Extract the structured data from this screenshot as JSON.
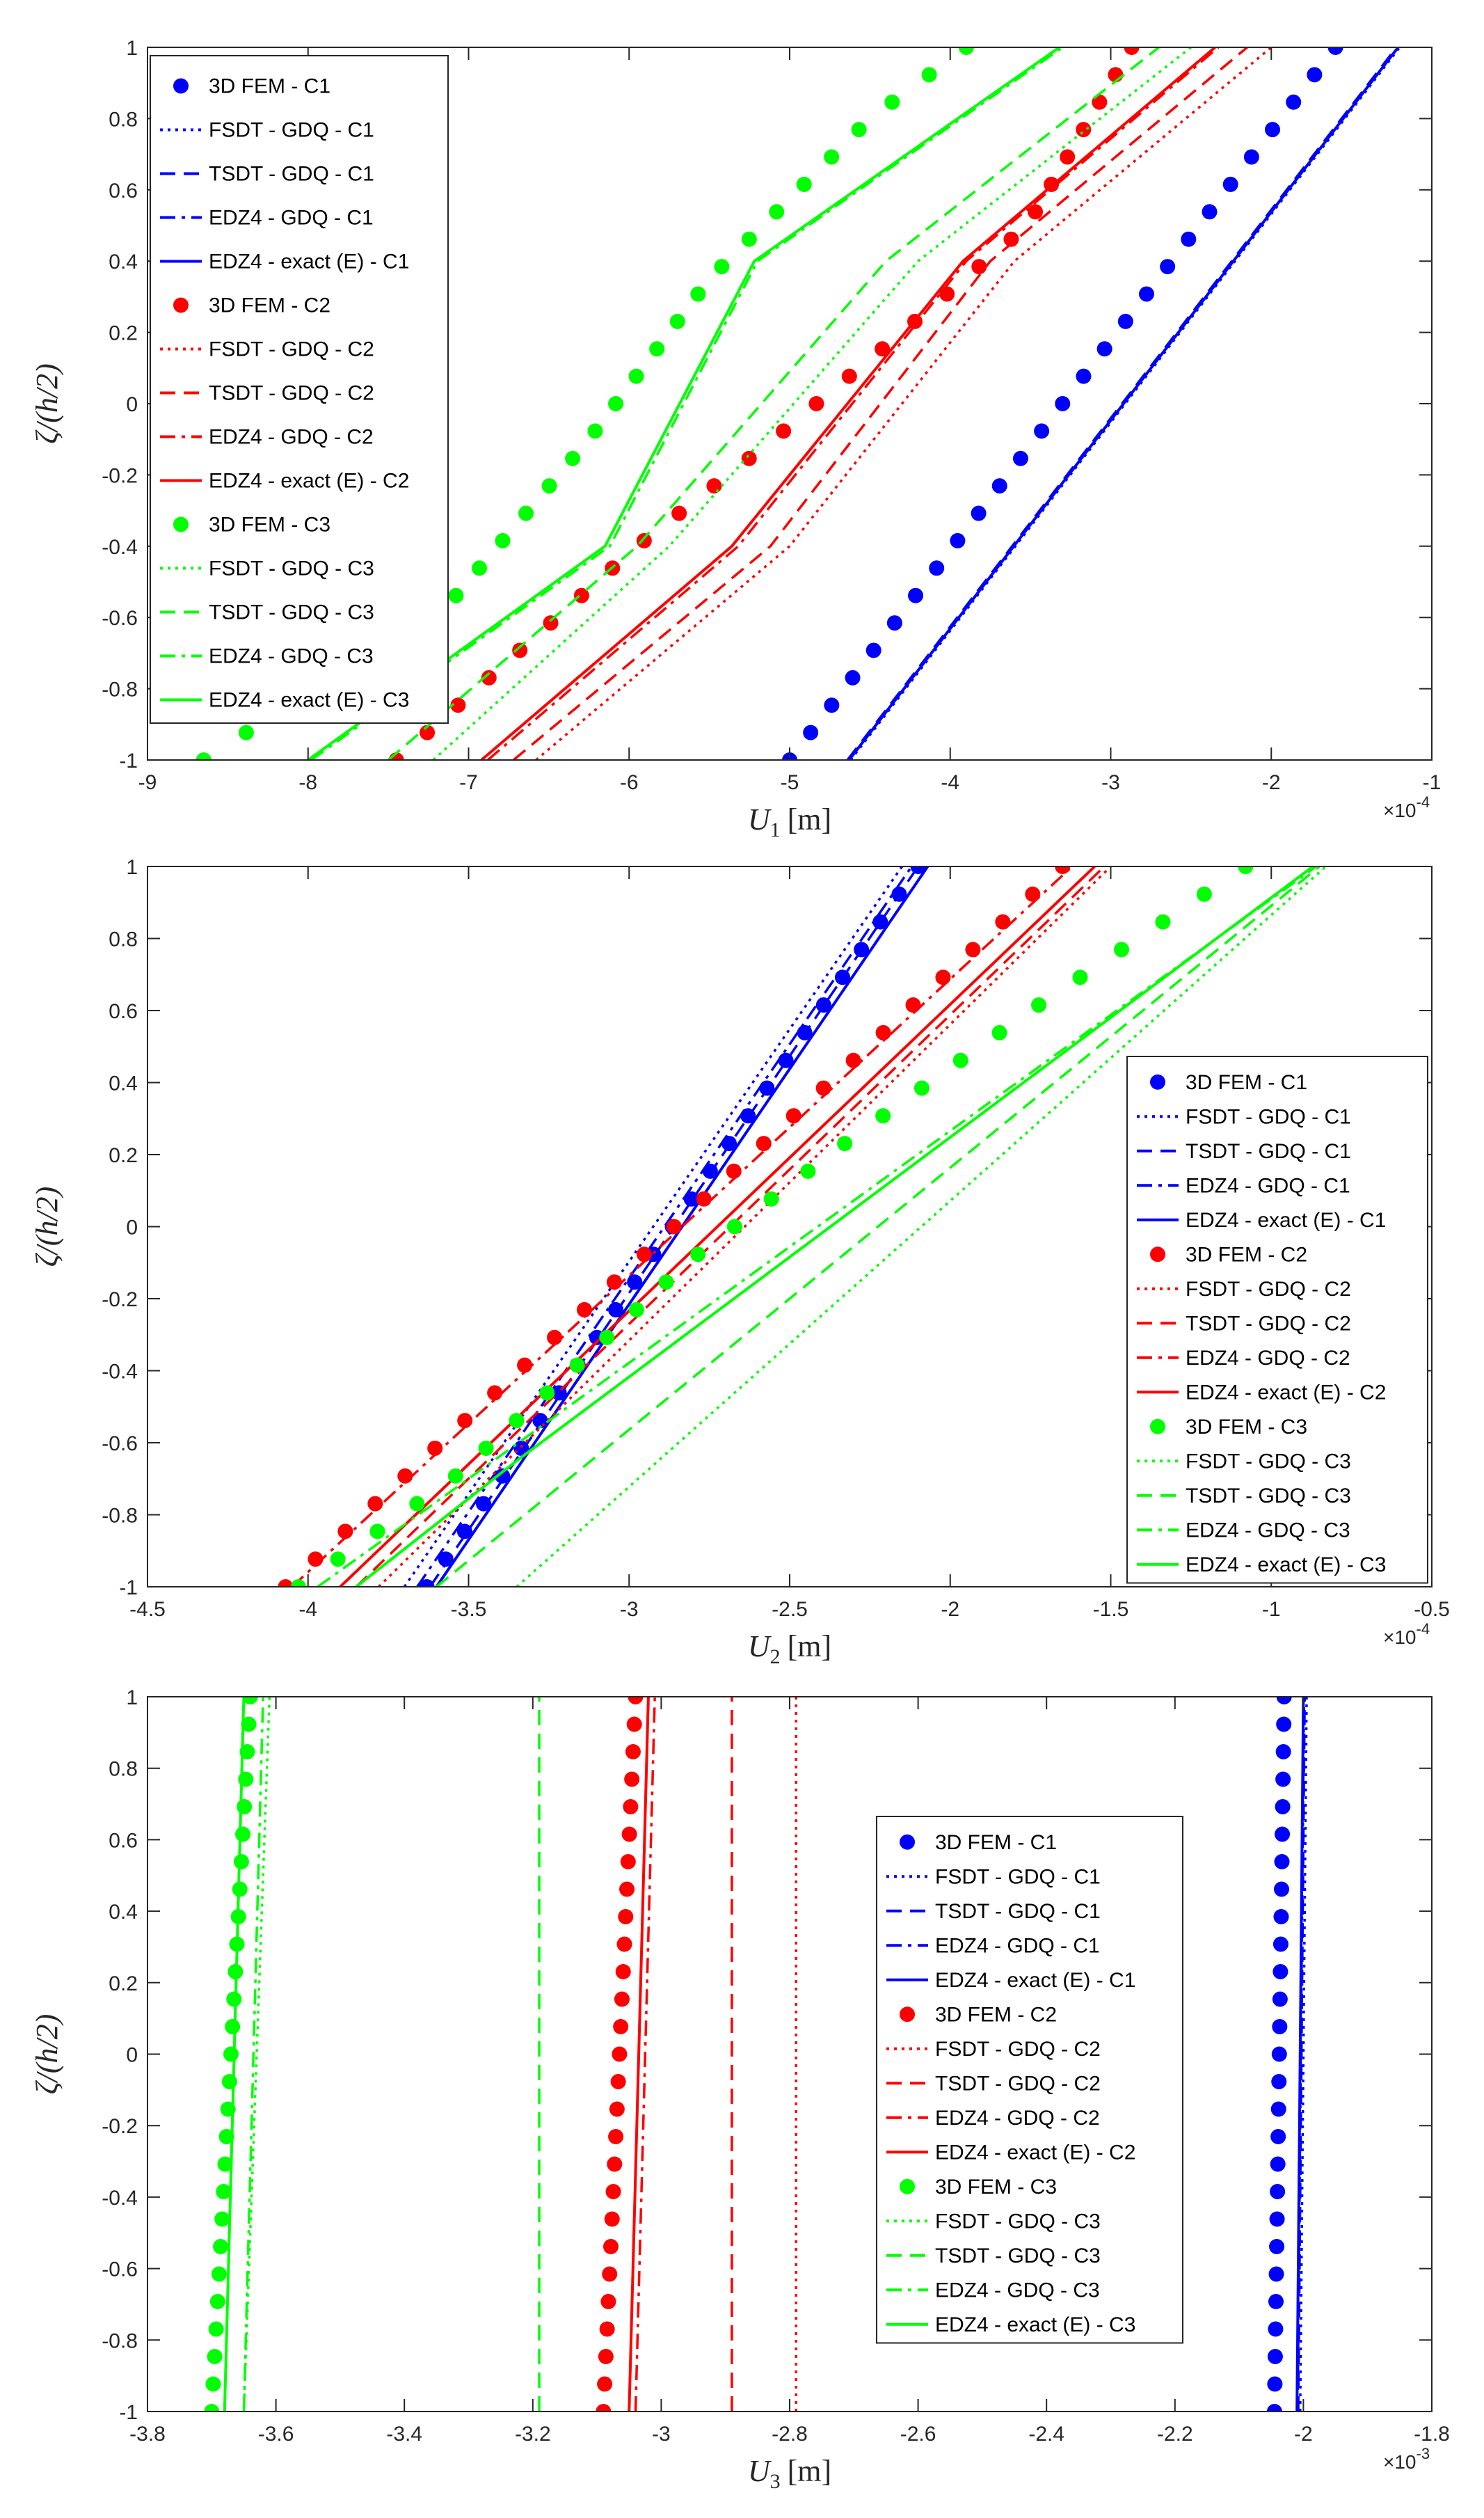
{
  "chart_data": [
    {
      "type": "line",
      "title": "",
      "xlabel": {
        "var": "U",
        "sub": "1",
        "unit": "[m]"
      },
      "ylabel": "ζ/(h/2)",
      "xlim": [
        -9,
        -1
      ],
      "ylim": [
        -1,
        1
      ],
      "xticks": [
        -9,
        -8,
        -7,
        -6,
        -5,
        -4,
        -3,
        -2,
        -1
      ],
      "yticks": [
        -1,
        -0.8,
        -0.6,
        -0.4,
        -0.2,
        0,
        0.2,
        0.4,
        0.6,
        0.8,
        1
      ],
      "xtick_labels": [
        "-9",
        "-8",
        "-7",
        "-6",
        "-5",
        "-4",
        "-3",
        "-2",
        "-1"
      ],
      "ytick_labels": [
        "-1",
        "-0.8",
        "-0.6",
        "-0.4",
        "-0.2",
        "0",
        "0.2",
        "0.4",
        "0.6",
        "0.8",
        "1"
      ],
      "multiplier": {
        "base": "×10",
        "exp": "-4"
      },
      "legend_position": "top-left",
      "series": [
        {
          "name": "3D FEM - C1",
          "color": "#0000ff",
          "style": "markers",
          "x": [
            -5.0,
            -4.32,
            -3.64,
            -2.96,
            -2.28,
            -1.6
          ],
          "y": [
            -1,
            -0.6,
            -0.2,
            0.2,
            0.6,
            1
          ]
        },
        {
          "name": "FSDT - GDQ - C1",
          "color": "#0000ff",
          "style": "dotted",
          "x": [
            -4.62,
            -1.2
          ],
          "y": [
            -1,
            1
          ]
        },
        {
          "name": "TSDT - GDQ - C1",
          "color": "#0000ff",
          "style": "dashed",
          "x": [
            -4.64,
            -1.22
          ],
          "y": [
            -1,
            1
          ]
        },
        {
          "name": "EDZ4 - GDQ - C1",
          "color": "#0000ff",
          "style": "dashdot",
          "x": [
            -4.63,
            -1.21
          ],
          "y": [
            -1,
            1
          ]
        },
        {
          "name": "EDZ4 - exact (E) - C1",
          "color": "#0000ff",
          "style": "solid",
          "x": [
            -4.63,
            -1.21
          ],
          "y": [
            -1,
            1
          ]
        },
        {
          "name": "3D FEM - C2",
          "color": "#ff0000",
          "style": "markers",
          "x": [
            -7.45,
            -6.7,
            -5.95,
            -5.1,
            -4.3,
            -3.52,
            -2.87
          ],
          "y": [
            -1,
            -0.7,
            -0.4,
            -0.1,
            0.2,
            0.5,
            1
          ]
        },
        {
          "name": "FSDT - GDQ - C2",
          "color": "#ff0000",
          "style": "dotted",
          "x": [
            -6.58,
            -5.0,
            -3.6,
            -2.0
          ],
          "y": [
            -1,
            -0.4,
            0.4,
            1
          ]
        },
        {
          "name": "TSDT - GDQ - C2",
          "color": "#ff0000",
          "style": "dashed",
          "x": [
            -6.72,
            -5.12,
            -3.75,
            -2.15
          ],
          "y": [
            -1,
            -0.4,
            0.4,
            1
          ]
        },
        {
          "name": "EDZ4 - GDQ - C2",
          "color": "#ff0000",
          "style": "dashdot",
          "x": [
            -6.88,
            -5.32,
            -3.9,
            -2.33
          ],
          "y": [
            -1,
            -0.4,
            0.4,
            1
          ]
        },
        {
          "name": "EDZ4 - exact (E) - C2",
          "color": "#ff0000",
          "style": "solid",
          "x": [
            -6.92,
            -5.36,
            -3.92,
            -2.35
          ],
          "y": [
            -1,
            -0.4,
            0.4,
            1
          ]
        },
        {
          "name": "3D FEM - C3",
          "color": "#00ff00",
          "style": "markers",
          "x": [
            -8.65,
            -7.1,
            -6.25,
            -5.5,
            -4.5,
            -3.9
          ],
          "y": [
            -1,
            -0.55,
            -0.1,
            0.35,
            0.8,
            1
          ]
        },
        {
          "name": "FSDT - GDQ - C3",
          "color": "#00ff00",
          "style": "dotted",
          "x": [
            -7.22,
            -5.75,
            -4.2,
            -2.5
          ],
          "y": [
            -1,
            -0.4,
            0.4,
            1
          ]
        },
        {
          "name": "TSDT - GDQ - C3",
          "color": "#00ff00",
          "style": "dashed",
          "x": [
            -7.5,
            -5.95,
            -4.4,
            -2.7
          ],
          "y": [
            -1,
            -0.4,
            0.4,
            1
          ]
        },
        {
          "name": "EDZ4 - GDQ - C3",
          "color": "#00ff00",
          "style": "dashdot",
          "x": [
            -7.98,
            -6.12,
            -5.2,
            -3.3
          ],
          "y": [
            -1,
            -0.4,
            0.4,
            1
          ]
        },
        {
          "name": "EDZ4 - exact (E) - C3",
          "color": "#00ff00",
          "style": "solid",
          "x": [
            -8.0,
            -6.15,
            -5.22,
            -3.32
          ],
          "y": [
            -1,
            -0.4,
            0.4,
            1
          ]
        }
      ]
    },
    {
      "type": "line",
      "title": "",
      "xlabel": {
        "var": "U",
        "sub": "2",
        "unit": "[m]"
      },
      "ylabel": "ζ/(h/2)",
      "xlim": [
        -4.5,
        -0.5
      ],
      "ylim": [
        -1,
        1
      ],
      "xticks": [
        -4.5,
        -4,
        -3.5,
        -3,
        -2.5,
        -2,
        -1.5,
        -1,
        -0.5
      ],
      "yticks": [
        -1,
        -0.8,
        -0.6,
        -0.4,
        -0.2,
        0,
        0.2,
        0.4,
        0.6,
        0.8,
        1
      ],
      "xtick_labels": [
        "-4.5",
        "-4",
        "-3.5",
        "-3",
        "-2.5",
        "-2",
        "-1.5",
        "-1",
        "-0.5"
      ],
      "ytick_labels": [
        "-1",
        "-0.8",
        "-0.6",
        "-0.4",
        "-0.2",
        "0",
        "0.2",
        "0.4",
        "0.6",
        "0.8",
        "1"
      ],
      "multiplier": {
        "base": "×10",
        "exp": "-4"
      },
      "legend_position": "right",
      "series": [
        {
          "name": "3D FEM - C1",
          "color": "#0000ff",
          "style": "markers",
          "x": [
            -3.63,
            -2.1
          ],
          "y": [
            -1,
            1
          ]
        },
        {
          "name": "FSDT - GDQ - C1",
          "color": "#0000ff",
          "style": "dotted",
          "x": [
            -3.7,
            -2.15
          ],
          "y": [
            -1,
            1
          ]
        },
        {
          "name": "TSDT - GDQ - C1",
          "color": "#0000ff",
          "style": "dashed",
          "x": [
            -3.62,
            -2.1
          ],
          "y": [
            -1,
            1
          ]
        },
        {
          "name": "EDZ4 - GDQ - C1",
          "color": "#0000ff",
          "style": "dashdot",
          "x": [
            -3.66,
            -2.12
          ],
          "y": [
            -1,
            1
          ]
        },
        {
          "name": "EDZ4 - exact (E) - C1",
          "color": "#0000ff",
          "style": "solid",
          "x": [
            -3.6,
            -2.07
          ],
          "y": [
            -1,
            1
          ]
        },
        {
          "name": "3D FEM - C2",
          "color": "#ff0000",
          "style": "markers",
          "x": [
            -4.07,
            -1.65
          ],
          "y": [
            -1,
            1
          ]
        },
        {
          "name": "FSDT - GDQ - C2",
          "color": "#ff0000",
          "style": "dotted",
          "x": [
            -3.78,
            -1.5
          ],
          "y": [
            -1,
            1
          ]
        },
        {
          "name": "TSDT - GDQ - C2",
          "color": "#ff0000",
          "style": "dashed",
          "x": [
            -3.85,
            -1.52
          ],
          "y": [
            -1,
            1
          ]
        },
        {
          "name": "EDZ4 - GDQ - C2",
          "color": "#ff0000",
          "style": "dashdot",
          "x": [
            -4.05,
            -1.62
          ],
          "y": [
            -1,
            1
          ]
        },
        {
          "name": "EDZ4 - exact (E) - C2",
          "color": "#ff0000",
          "style": "solid",
          "x": [
            -3.9,
            -1.55
          ],
          "y": [
            -1,
            1
          ]
        },
        {
          "name": "3D FEM - C3",
          "color": "#00ff00",
          "style": "markers",
          "x": [
            -4.03,
            -3.55,
            -3.18,
            -2.82,
            -2.3,
            -1.75,
            -1.08
          ],
          "y": [
            -1,
            -0.7,
            -0.4,
            -0.1,
            0.25,
            0.6,
            1
          ]
        },
        {
          "name": "FSDT - GDQ - C3",
          "color": "#00ff00",
          "style": "dotted",
          "x": [
            -3.35,
            -0.83
          ],
          "y": [
            -1,
            1
          ]
        },
        {
          "name": "TSDT - GDQ - C3",
          "color": "#00ff00",
          "style": "dashed",
          "x": [
            -3.6,
            -0.85
          ],
          "y": [
            -1,
            1
          ]
        },
        {
          "name": "EDZ4 - GDQ - C3",
          "color": "#00ff00",
          "style": "dashdot",
          "x": [
            -3.97,
            -3.5,
            -0.86
          ],
          "y": [
            -1,
            -0.7,
            1
          ]
        },
        {
          "name": "EDZ4 - exact (E) - C3",
          "color": "#00ff00",
          "style": "solid",
          "x": [
            -3.85,
            -3.35,
            -0.87
          ],
          "y": [
            -1,
            -0.65,
            1
          ]
        }
      ]
    },
    {
      "type": "line",
      "title": "",
      "xlabel": {
        "var": "U",
        "sub": "3",
        "unit": "[m]"
      },
      "ylabel": "ζ/(h/2)",
      "xlim": [
        -3.8,
        -1.8
      ],
      "ylim": [
        -1,
        1
      ],
      "xticks": [
        -3.8,
        -3.6,
        -3.4,
        -3.2,
        -3,
        -2.8,
        -2.6,
        -2.4,
        -2.2,
        -2,
        -1.8
      ],
      "yticks": [
        -1,
        -0.8,
        -0.6,
        -0.4,
        -0.2,
        0,
        0.2,
        0.4,
        0.6,
        0.8,
        1
      ],
      "xtick_labels": [
        "-3.8",
        "-3.6",
        "-3.4",
        "-3.2",
        "-3",
        "-2.8",
        "-2.6",
        "-2.4",
        "-2.2",
        "-2",
        "-1.8"
      ],
      "ytick_labels": [
        "-1",
        "-0.8",
        "-0.6",
        "-0.4",
        "-0.2",
        "0",
        "0.2",
        "0.4",
        "0.6",
        "0.8",
        "1"
      ],
      "multiplier": {
        "base": "×10",
        "exp": "-3"
      },
      "legend_position": "center-right",
      "series": [
        {
          "name": "3D FEM - C1",
          "color": "#0000ff",
          "style": "markers",
          "x": [
            -2.045,
            -2.03
          ],
          "y": [
            -1,
            1
          ]
        },
        {
          "name": "FSDT - GDQ - C1",
          "color": "#0000ff",
          "style": "dotted",
          "x": [
            -2.005,
            -1.995
          ],
          "y": [
            -1,
            1
          ]
        },
        {
          "name": "TSDT - GDQ - C1",
          "color": "#0000ff",
          "style": "dashed",
          "x": [
            -2.008,
            -1.998
          ],
          "y": [
            -1,
            1
          ]
        },
        {
          "name": "EDZ4 - GDQ - C1",
          "color": "#0000ff",
          "style": "dashdot",
          "x": [
            -2.009,
            -1.999
          ],
          "y": [
            -1,
            1
          ]
        },
        {
          "name": "EDZ4 - exact (E) - C1",
          "color": "#0000ff",
          "style": "solid",
          "x": [
            -2.01,
            -2.0
          ],
          "y": [
            -1,
            1
          ]
        },
        {
          "name": "3D FEM - C2",
          "color": "#ff0000",
          "style": "markers",
          "x": [
            -3.09,
            -3.04
          ],
          "y": [
            -1,
            1
          ]
        },
        {
          "name": "FSDT - GDQ - C2",
          "color": "#ff0000",
          "style": "dotted",
          "x": [
            -2.79,
            -2.79
          ],
          "y": [
            -1,
            1
          ]
        },
        {
          "name": "TSDT - GDQ - C2",
          "color": "#ff0000",
          "style": "dashed",
          "x": [
            -2.89,
            -2.89
          ],
          "y": [
            -1,
            1
          ]
        },
        {
          "name": "EDZ4 - GDQ - C2",
          "color": "#ff0000",
          "style": "dashdot",
          "x": [
            -3.04,
            -3.01
          ],
          "y": [
            -1,
            1
          ]
        },
        {
          "name": "EDZ4 - exact (E) - C2",
          "color": "#ff0000",
          "style": "solid",
          "x": [
            -3.05,
            -3.02
          ],
          "y": [
            -1,
            1
          ]
        },
        {
          "name": "3D FEM - C3",
          "color": "#00ff00",
          "style": "markers",
          "x": [
            -3.7,
            -3.64
          ],
          "y": [
            -1,
            1
          ]
        },
        {
          "name": "FSDT - GDQ - C3",
          "color": "#00ff00",
          "style": "dotted",
          "x": [
            -3.65,
            -3.61
          ],
          "y": [
            -1,
            1
          ]
        },
        {
          "name": "TSDT - GDQ - C3",
          "color": "#00ff00",
          "style": "dashed",
          "x": [
            -3.19,
            -3.19
          ],
          "y": [
            -1,
            1
          ]
        },
        {
          "name": "EDZ4 - GDQ - C3",
          "color": "#00ff00",
          "style": "dashdot",
          "x": [
            -3.65,
            -3.62
          ],
          "y": [
            -1,
            1
          ]
        },
        {
          "name": "EDZ4 - exact (E) - C3",
          "color": "#00ff00",
          "style": "solid",
          "x": [
            -3.68,
            -3.65
          ],
          "y": [
            -1,
            1
          ]
        }
      ]
    }
  ]
}
